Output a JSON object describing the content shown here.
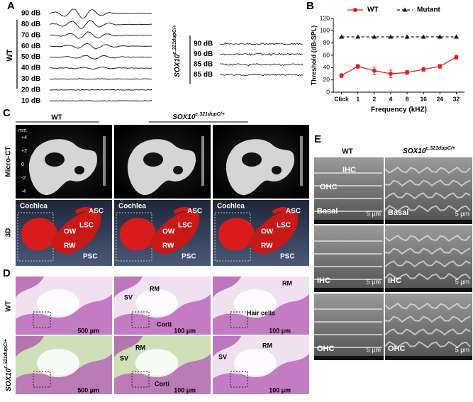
{
  "panel_labels": [
    "A",
    "B",
    "C",
    "D",
    "E"
  ],
  "panel_a": {
    "group_wt": "WT",
    "group_mutant_gene": "SOX10",
    "group_mutant_allele": "c.321dupC/+",
    "wt_levels": [
      "90 dB",
      "80 dB",
      "70 dB",
      "60 dB",
      "50 dB",
      "40 dB",
      "30 dB",
      "20 dB",
      "10 dB"
    ],
    "mutant_levels": [
      "90 dB",
      "90 dB",
      "85 dB",
      "85 dB"
    ]
  },
  "chart_data": {
    "type": "line",
    "categories": [
      "Click",
      "1",
      "2",
      "4",
      "8",
      "16",
      "24",
      "32"
    ],
    "x_label": "Frequency (kHZ)",
    "y_label": "Threshold (dB-SPL)",
    "ylim": [
      0,
      120
    ],
    "yticks": [
      0,
      20,
      40,
      60,
      80,
      100,
      120
    ],
    "legend": "top",
    "series": [
      {
        "name": "WT",
        "color": "#e02020",
        "marker": "circle",
        "dash": false,
        "values": [
          27,
          42,
          35,
          30,
          32,
          37,
          42,
          57
        ],
        "error": [
          3,
          3,
          6,
          6,
          3,
          3,
          3,
          3
        ]
      },
      {
        "name": "Mutant",
        "color": "#111111",
        "marker": "triangle",
        "dash": true,
        "values": [
          90,
          90,
          90,
          90,
          90,
          90,
          90,
          90
        ]
      }
    ]
  },
  "panel_c": {
    "header_wt": "WT",
    "header_mutant_gene": "SOX10",
    "header_mutant_allele": "c.321dupC/+",
    "row_labels": [
      "Micro-CT",
      "3D"
    ],
    "scale_unit": "mm",
    "scale_ticks": [
      "+4",
      "+2",
      "0",
      "-2",
      "-4"
    ],
    "structures": [
      "Cochlea",
      "ASC",
      "LSC",
      "OW",
      "RW",
      "PSC"
    ]
  },
  "panel_d": {
    "row_wt": "WT",
    "row_mutant_gene": "SOX10",
    "row_mutant_allele": "c.321dupC/+",
    "images": [
      [
        "500 µm"
      ],
      [
        "SV",
        "RM",
        "Corti",
        "100 µm"
      ],
      [
        "RM",
        "Hair cells",
        "100 µm"
      ],
      [
        "500 µm"
      ],
      [
        "RM",
        "SV",
        "Corti",
        "100 µm"
      ],
      [
        "SV",
        "RM",
        "100 µm"
      ]
    ]
  },
  "panel_e": {
    "header_wt": "WT",
    "header_mutant_gene": "SOX10",
    "header_mutant_allele": "c.321dupC/+",
    "images": [
      [
        "IHC",
        "OHC",
        "Basal",
        "5 µm"
      ],
      [
        "Basal",
        "5 µm"
      ],
      [
        "IHC",
        "5 µm"
      ],
      [
        "IHC",
        "5 µm"
      ],
      [
        "OHC",
        "5 µm"
      ],
      [
        "OHC",
        "5 µm"
      ]
    ]
  }
}
